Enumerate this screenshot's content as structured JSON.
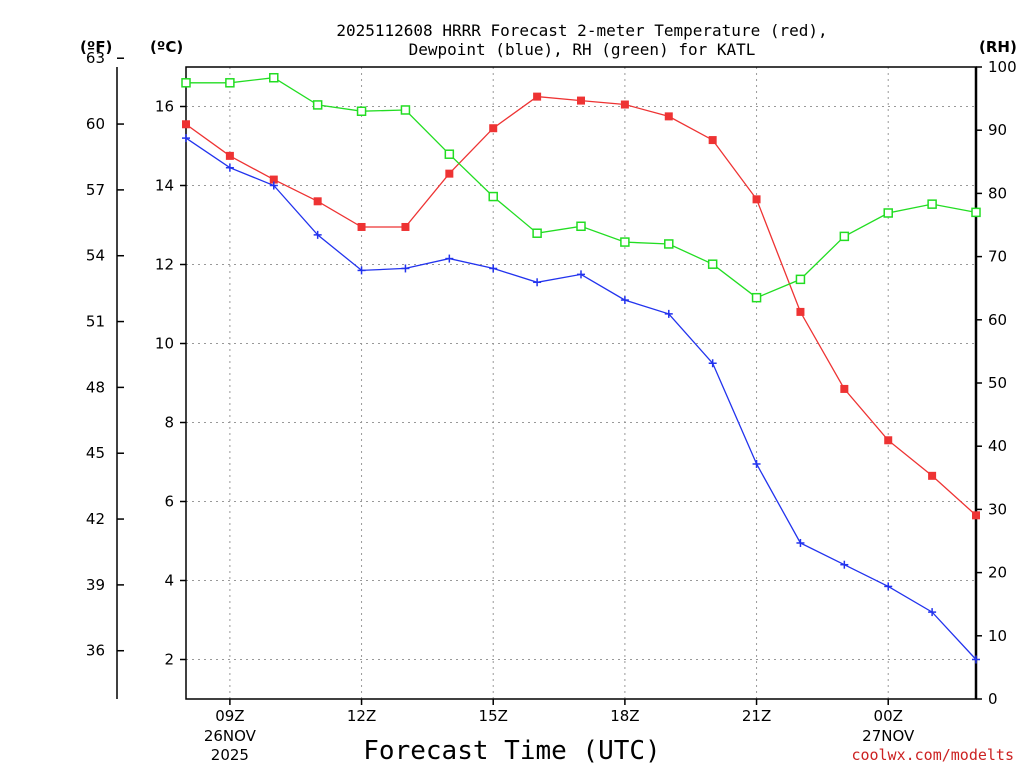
{
  "chart_data": {
    "type": "line",
    "title_line1": "2025112608 HRRR Forecast 2-meter Temperature (red),",
    "title_line2": "Dewpoint (blue), RH (green) for KATL",
    "left_unit_f": "(ºF)",
    "left_unit_c": "(ºC)",
    "right_unit": "(RH)",
    "xlabel": "Forecast Time (UTC)",
    "credit": "coolwx.com/modelts",
    "credit_color": "#cc2222",
    "x_range_hours_utc": [
      8,
      26
    ],
    "x_ticks": [
      {
        "hour": 9,
        "label": "09Z",
        "date": "26NOV",
        "year": "2025"
      },
      {
        "hour": 12,
        "label": "12Z",
        "date": "",
        "year": ""
      },
      {
        "hour": 15,
        "label": "15Z",
        "date": "",
        "year": ""
      },
      {
        "hour": 18,
        "label": "18Z",
        "date": "",
        "year": ""
      },
      {
        "hour": 21,
        "label": "21Z",
        "date": "",
        "year": ""
      },
      {
        "hour": 24,
        "label": "00Z",
        "date": "27NOV",
        "year": ""
      }
    ],
    "celsius_axis": {
      "range": [
        1,
        17
      ],
      "ticks": [
        "16",
        "14",
        "12",
        "10",
        "8",
        "6",
        "4",
        "2"
      ]
    },
    "fahrenheit_axis": {
      "ticks": [
        "63",
        "60",
        "57",
        "54",
        "51",
        "48",
        "45",
        "42",
        "39",
        "36"
      ]
    },
    "rh_axis": {
      "range": [
        0,
        100
      ],
      "ticks": [
        "100",
        "90",
        "80",
        "70",
        "60",
        "50",
        "40",
        "30",
        "20",
        "10",
        "0"
      ]
    },
    "grid": true,
    "series": [
      {
        "name": "Temperature",
        "unit": "C",
        "axis": "celsius",
        "color": "#ee3333",
        "marker": "filled-square",
        "values": [
          15.55,
          14.75,
          14.15,
          13.6,
          12.95,
          12.95,
          14.3,
          15.45,
          16.25,
          16.15,
          16.05,
          15.75,
          15.15,
          13.65,
          10.8,
          8.85,
          7.55,
          6.65,
          5.65
        ]
      },
      {
        "name": "Dewpoint",
        "unit": "C",
        "axis": "celsius",
        "color": "#2233ee",
        "marker": "plus",
        "values": [
          15.2,
          14.45,
          14.0,
          12.75,
          11.85,
          11.9,
          12.15,
          11.9,
          11.55,
          11.75,
          11.1,
          10.75,
          9.5,
          6.95,
          4.95,
          4.4,
          3.85,
          3.2,
          2.0
        ]
      },
      {
        "name": "RH",
        "unit": "%",
        "axis": "rh",
        "color": "#22dd22",
        "marker": "open-square",
        "values": [
          97.5,
          97.5,
          98.3,
          94.0,
          93.0,
          93.2,
          86.2,
          79.5,
          73.7,
          74.8,
          72.3,
          72.0,
          68.8,
          63.5,
          66.4,
          73.2,
          76.9,
          78.3,
          77.0
        ]
      }
    ]
  }
}
